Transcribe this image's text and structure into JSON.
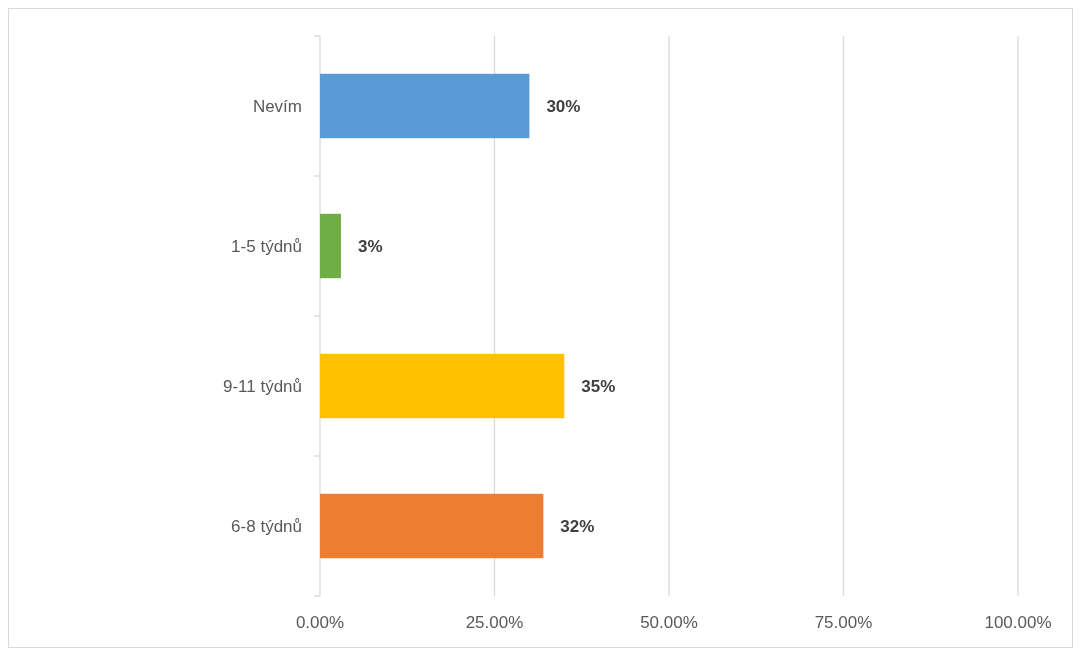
{
  "chart_data": {
    "type": "bar",
    "orientation": "horizontal",
    "categories": [
      "Nevím",
      "1-5 týdnů",
      "9-11 týdnů",
      "6-8 týdnů"
    ],
    "values": [
      30,
      3,
      35,
      32
    ],
    "colors": [
      "#5b9bd5",
      "#70ad47",
      "#ffc000",
      "#ed7d31"
    ],
    "value_labels": [
      "30%",
      "3%",
      "35%",
      "32%"
    ],
    "xlim": [
      0,
      100
    ],
    "xticks": [
      {
        "value": 0,
        "label": "0.00%"
      },
      {
        "value": 25,
        "label": "25.00%"
      },
      {
        "value": 50,
        "label": "50.00%"
      },
      {
        "value": 75,
        "label": "75.00%"
      },
      {
        "value": 100,
        "label": "100.00%"
      }
    ],
    "grid": "x"
  }
}
